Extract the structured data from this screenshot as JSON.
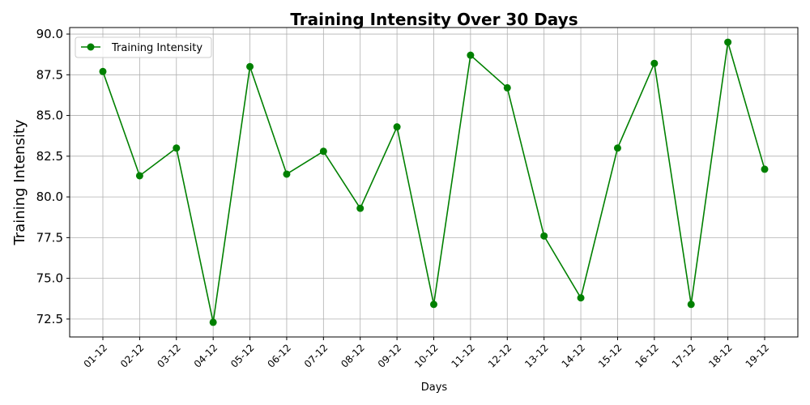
{
  "chart_data": {
    "type": "line",
    "title": "Training Intensity Over 30 Days",
    "xlabel": "Days",
    "ylabel": "Training Intensity",
    "categories": [
      "01-12",
      "02-12",
      "03-12",
      "04-12",
      "05-12",
      "06-12",
      "07-12",
      "08-12",
      "09-12",
      "10-12",
      "11-12",
      "12-12",
      "13-12",
      "14-12",
      "15-12",
      "16-12",
      "17-12",
      "18-12",
      "19-12"
    ],
    "series": [
      {
        "name": "Training Intensity",
        "color": "#008000",
        "marker": "circle",
        "values": [
          87.7,
          81.3,
          83.0,
          72.3,
          88.0,
          81.4,
          82.8,
          79.3,
          84.3,
          73.4,
          88.7,
          86.7,
          77.6,
          73.8,
          83.0,
          88.2,
          73.4,
          89.5,
          81.7
        ]
      }
    ],
    "ylim": [
      71.4,
      90.4
    ],
    "yticks": [
      "72.5",
      "75.0",
      "77.5",
      "80.0",
      "82.5",
      "85.0",
      "87.5",
      "90.0"
    ],
    "grid": true,
    "legend_position": "top-left"
  }
}
